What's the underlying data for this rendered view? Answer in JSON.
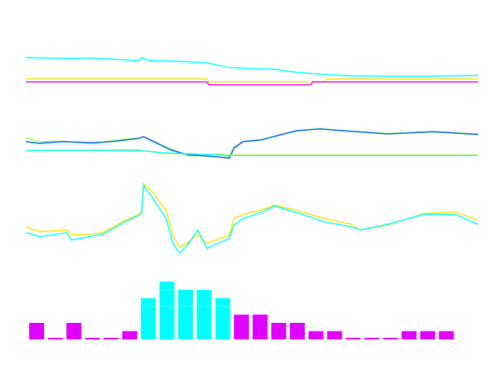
{
  "chart_data": [
    {
      "type": "line",
      "panel": "top",
      "xlim": [
        0,
        100
      ],
      "ylim": [
        0,
        100
      ],
      "series": [
        {
          "color": "#00ffff",
          "points": [
            [
              0,
              76
            ],
            [
              10,
              74
            ],
            [
              15,
              75
            ],
            [
              20,
              72
            ],
            [
              25,
              69
            ],
            [
              25.6,
              76
            ],
            [
              27,
              70
            ],
            [
              35,
              67
            ],
            [
              40,
              64
            ],
            [
              45,
              53
            ],
            [
              50,
              51
            ],
            [
              55,
              49
            ],
            [
              60,
              42
            ],
            [
              65,
              38
            ],
            [
              72,
              34
            ],
            [
              80,
              33
            ],
            [
              90,
              33
            ],
            [
              100,
              35
            ]
          ]
        },
        {
          "color": "#ffe000",
          "points": [
            [
              0,
              27
            ],
            [
              20,
              27
            ],
            [
              40,
              27
            ],
            [
              40.5,
              20
            ],
            [
              66,
              20
            ],
            [
              66.5,
              27
            ],
            [
              100,
              27
            ]
          ]
        },
        {
          "color": "#e000ff",
          "points": [
            [
              0,
              20
            ],
            [
              20,
              20
            ],
            [
              40,
              20
            ],
            [
              40.5,
              13
            ],
            [
              63,
              13
            ],
            [
              63.5,
              20
            ],
            [
              100,
              20
            ]
          ]
        }
      ]
    },
    {
      "type": "line",
      "panel": "middle",
      "xlim": [
        0,
        100
      ],
      "ylim": [
        0,
        100
      ],
      "series": [
        {
          "color": "#a0ff60",
          "points": [
            [
              0,
              50
            ],
            [
              3,
              43
            ],
            [
              8,
              44
            ],
            [
              15,
              39
            ],
            [
              20,
              46
            ],
            [
              25,
              50
            ],
            [
              26,
              52
            ],
            [
              28,
              45
            ],
            [
              32,
              30
            ],
            [
              36,
              17
            ],
            [
              40,
              19
            ],
            [
              43,
              21
            ],
            [
              45,
              15
            ],
            [
              46,
              33
            ],
            [
              48,
              43
            ],
            [
              52,
              47
            ],
            [
              57,
              57
            ],
            [
              60,
              63
            ],
            [
              65,
              67
            ],
            [
              70,
              63
            ],
            [
              80,
              58
            ],
            [
              90,
              61
            ],
            [
              100,
              57
            ]
          ]
        },
        {
          "color": "#0060ff",
          "points": [
            [
              0,
              43
            ],
            [
              3,
              40
            ],
            [
              8,
              43
            ],
            [
              15,
              41
            ],
            [
              20,
              44
            ],
            [
              25,
              49
            ],
            [
              26,
              52
            ],
            [
              28,
              44
            ],
            [
              32,
              28
            ],
            [
              36,
              19
            ],
            [
              40,
              17
            ],
            [
              43,
              15
            ],
            [
              45,
              13
            ],
            [
              46,
              31
            ],
            [
              48,
              43
            ],
            [
              52,
              46
            ],
            [
              57,
              57
            ],
            [
              60,
              63
            ],
            [
              65,
              66
            ],
            [
              70,
              63
            ],
            [
              80,
              57
            ],
            [
              90,
              61
            ],
            [
              100,
              56
            ]
          ]
        },
        {
          "color": "#ffe000",
          "points": [
            [
              0,
              27
            ],
            [
              25,
              28
            ],
            [
              30,
              22
            ],
            [
              45,
              19
            ],
            [
              100,
              19
            ]
          ]
        },
        {
          "color": "#00ffff",
          "points": [
            [
              0,
              27
            ],
            [
              25,
              27
            ],
            [
              30,
              23
            ],
            [
              45,
              18
            ],
            [
              100,
              18
            ]
          ]
        }
      ]
    },
    {
      "type": "line",
      "panel": "lower",
      "xlim": [
        0,
        100
      ],
      "ylim": [
        0,
        100
      ],
      "series": [
        {
          "color": "#ffe000",
          "points": [
            [
              0,
              40
            ],
            [
              3,
              34
            ],
            [
              9,
              36
            ],
            [
              10,
              31
            ],
            [
              13,
              30
            ],
            [
              17,
              33
            ],
            [
              22,
              48
            ],
            [
              25,
              55
            ],
            [
              25.6,
              60
            ],
            [
              26,
              92
            ],
            [
              28,
              82
            ],
            [
              31,
              60
            ],
            [
              32.5,
              30
            ],
            [
              34,
              15
            ],
            [
              36,
              22
            ],
            [
              38,
              30
            ],
            [
              40,
              20
            ],
            [
              45,
              30
            ],
            [
              46,
              50
            ],
            [
              48,
              55
            ],
            [
              52,
              60
            ],
            [
              55,
              66
            ],
            [
              60,
              60
            ],
            [
              66,
              50
            ],
            [
              72,
              43
            ],
            [
              74,
              36
            ],
            [
              80,
              42
            ],
            [
              88,
              56
            ],
            [
              95,
              58
            ],
            [
              100,
              48
            ]
          ]
        },
        {
          "color": "#00ffff",
          "points": [
            [
              0,
              33
            ],
            [
              3,
              28
            ],
            [
              9,
              33
            ],
            [
              10,
              24
            ],
            [
              13,
              27
            ],
            [
              17,
              31
            ],
            [
              22,
              46
            ],
            [
              25,
              54
            ],
            [
              25.6,
              57
            ],
            [
              26,
              90
            ],
            [
              28,
              75
            ],
            [
              31,
              50
            ],
            [
              32.5,
              20
            ],
            [
              34,
              8
            ],
            [
              36,
              20
            ],
            [
              38,
              36
            ],
            [
              40,
              14
            ],
            [
              45,
              26
            ],
            [
              46,
              42
            ],
            [
              48,
              50
            ],
            [
              52,
              57
            ],
            [
              55,
              65
            ],
            [
              60,
              57
            ],
            [
              66,
              46
            ],
            [
              72,
              40
            ],
            [
              74,
              36
            ],
            [
              80,
              43
            ],
            [
              88,
              55
            ],
            [
              95,
              55
            ],
            [
              100,
              43
            ]
          ]
        }
      ]
    },
    {
      "type": "bar",
      "panel": "bottom",
      "ylim": [
        0,
        8
      ],
      "values": [
        2,
        0,
        2,
        0,
        0,
        1,
        5,
        7,
        6,
        6,
        5,
        3,
        3,
        2,
        2,
        1,
        1,
        0,
        0,
        0,
        1,
        1,
        1
      ],
      "colors": {
        "high": "#00ffff",
        "low": "#e000ff",
        "threshold": 5
      },
      "dotted_levels": [
        4,
        6
      ]
    }
  ]
}
